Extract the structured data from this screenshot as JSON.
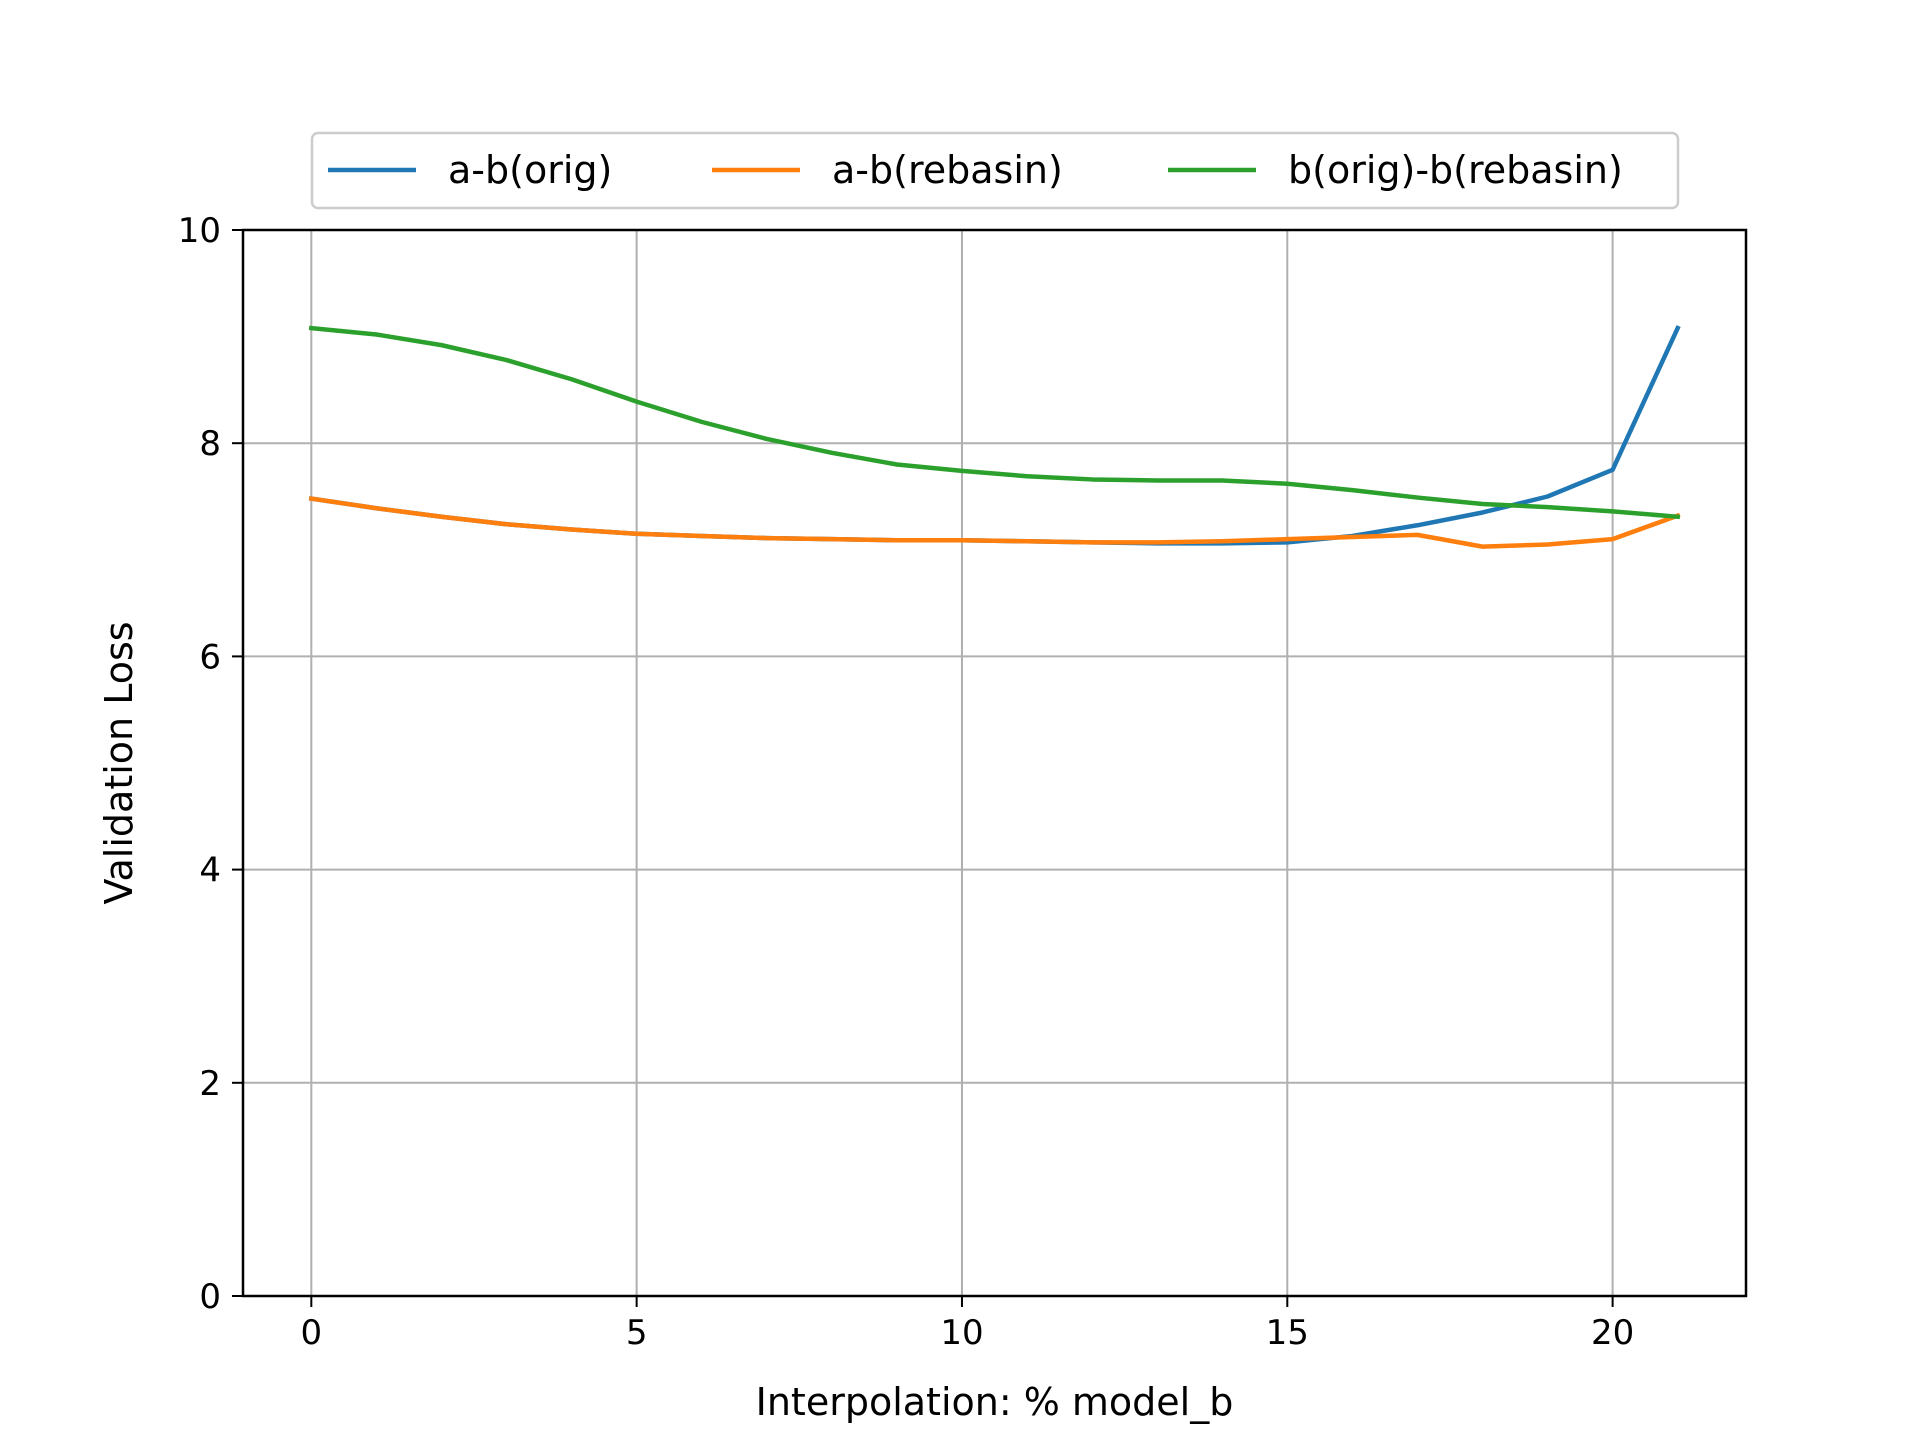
{
  "chart_data": {
    "type": "line",
    "title": "",
    "xlabel": "Interpolation: % model_b",
    "ylabel": "Validation Loss",
    "xlim": [
      -1.05,
      22.05
    ],
    "ylim": [
      0,
      10
    ],
    "xticks": [
      0,
      5,
      10,
      15,
      20
    ],
    "yticks": [
      0,
      2,
      4,
      6,
      8,
      10
    ],
    "grid": true,
    "legend_position": "top-center",
    "x": [
      0,
      1,
      2,
      3,
      4,
      5,
      6,
      7,
      8,
      9,
      10,
      11,
      12,
      13,
      14,
      15,
      16,
      17,
      18,
      19,
      20,
      21
    ],
    "series": [
      {
        "name": "a-b(orig)",
        "color": "#1f77b4",
        "values": [
          7.48,
          7.39,
          7.31,
          7.24,
          7.19,
          7.15,
          7.13,
          7.11,
          7.1,
          7.09,
          7.09,
          7.08,
          7.07,
          7.06,
          7.06,
          7.07,
          7.13,
          7.23,
          7.35,
          7.5,
          7.75,
          9.08
        ]
      },
      {
        "name": "a-b(rebasin)",
        "color": "#ff7f0e",
        "values": [
          7.48,
          7.39,
          7.31,
          7.24,
          7.19,
          7.15,
          7.13,
          7.11,
          7.1,
          7.09,
          7.09,
          7.08,
          7.07,
          7.07,
          7.08,
          7.1,
          7.12,
          7.14,
          7.03,
          7.05,
          7.1,
          7.32
        ]
      },
      {
        "name": "b(orig)-b(rebasin)",
        "color": "#2ca02c",
        "values": [
          9.08,
          9.02,
          8.92,
          8.78,
          8.6,
          8.39,
          8.2,
          8.04,
          7.91,
          7.8,
          7.74,
          7.69,
          7.66,
          7.65,
          7.65,
          7.62,
          7.56,
          7.49,
          7.43,
          7.4,
          7.36,
          7.31
        ]
      }
    ]
  }
}
